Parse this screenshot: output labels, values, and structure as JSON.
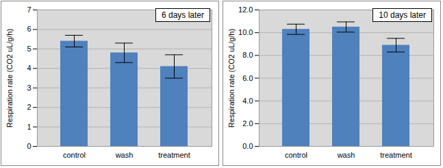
{
  "chart_data": [
    {
      "type": "bar",
      "annotation": "6 days later",
      "ylabel": "Respiration rate (CO2 uL/g/h)",
      "categories": [
        "control",
        "wash",
        "treatment"
      ],
      "values": [
        5.4,
        4.8,
        4.1
      ],
      "errors": [
        0.3,
        0.5,
        0.6
      ],
      "color": "#4f81bd",
      "ylim": [
        0,
        7
      ],
      "yticks": [
        0,
        1,
        2,
        3,
        4,
        5,
        6,
        7
      ],
      "grid": true
    },
    {
      "type": "bar",
      "annotation": "10 days later",
      "ylabel": "Respiration rate (CO2 uL/g/h)",
      "categories": [
        "control",
        "wash",
        "treatment"
      ],
      "values": [
        10.3,
        10.5,
        8.9
      ],
      "errors": [
        0.45,
        0.45,
        0.6
      ],
      "color": "#4f81bd",
      "ylim": [
        0,
        12
      ],
      "yticks": [
        {
          "value": 0,
          "label": "0.0"
        },
        {
          "value": 2,
          "label": "2.0"
        },
        {
          "value": 4,
          "label": "4.0"
        },
        {
          "value": 6,
          "label": "6.0"
        },
        {
          "value": 8,
          "label": "8.0"
        },
        {
          "value": 10,
          "label": "10.0"
        },
        {
          "value": 12,
          "label": "12.0"
        }
      ],
      "grid": true
    }
  ]
}
